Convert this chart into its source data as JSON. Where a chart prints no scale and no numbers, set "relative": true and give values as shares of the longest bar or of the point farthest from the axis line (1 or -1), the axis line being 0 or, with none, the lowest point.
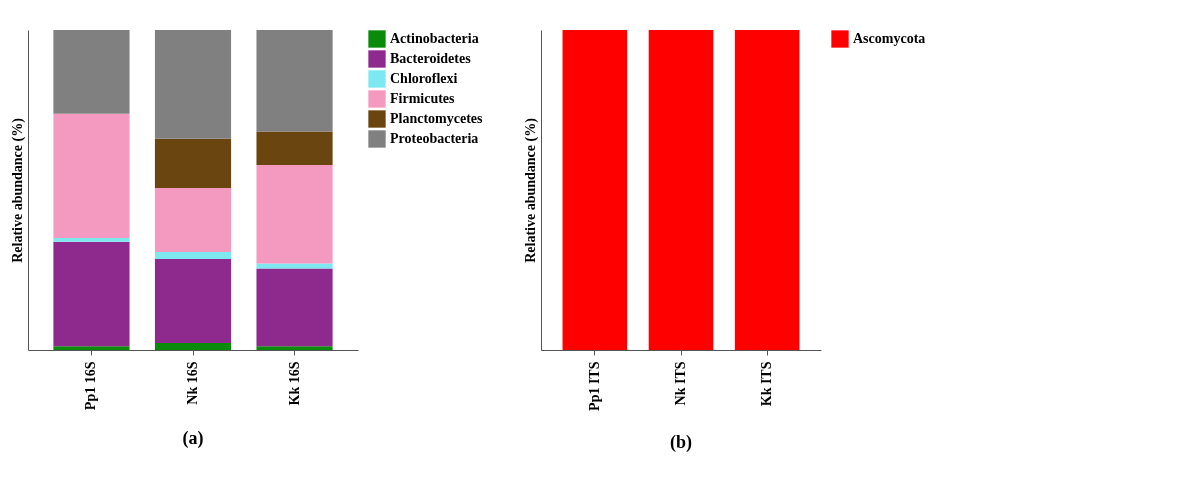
{
  "chart_data": [
    {
      "type": "bar",
      "title": "(a)",
      "ylabel": "Relative abundance (%)",
      "categories": [
        "Pp1 16S",
        "Nk 16S",
        "Kk 16S"
      ],
      "stacked": true,
      "relative": true,
      "legend": "right",
      "grid": false,
      "series": [
        {
          "name": "Actinobacteria",
          "color": "#0a8a0a",
          "values": [
            0.012,
            0.022,
            0.012
          ]
        },
        {
          "name": "Bacteroidetes",
          "color": "#8e2a8e",
          "values": [
            0.326,
            0.262,
            0.243
          ]
        },
        {
          "name": "Chloroflexi",
          "color": "#7ee8f0",
          "values": [
            0.012,
            0.022,
            0.015
          ]
        },
        {
          "name": "Firmicutes",
          "color": "#f49ac1",
          "values": [
            0.388,
            0.2,
            0.308
          ]
        },
        {
          "name": "Planctomycetes",
          "color": "#6b4510",
          "values": [
            0,
            0.154,
            0.105
          ]
        },
        {
          "name": "Proteobacteria",
          "color": "#808080",
          "values": [
            0.262,
            0.34,
            0.317
          ]
        }
      ]
    },
    {
      "type": "bar",
      "title": "(b)",
      "ylabel": "Relative abundance (%)",
      "categories": [
        "Pp1  ITS",
        "Nk  ITS",
        "Kk  ITS"
      ],
      "stacked": true,
      "relative": true,
      "legend": "right",
      "grid": false,
      "series": [
        {
          "name": "Ascomycota",
          "color": "#ff0000",
          "values": [
            1,
            1,
            1
          ]
        }
      ]
    }
  ]
}
